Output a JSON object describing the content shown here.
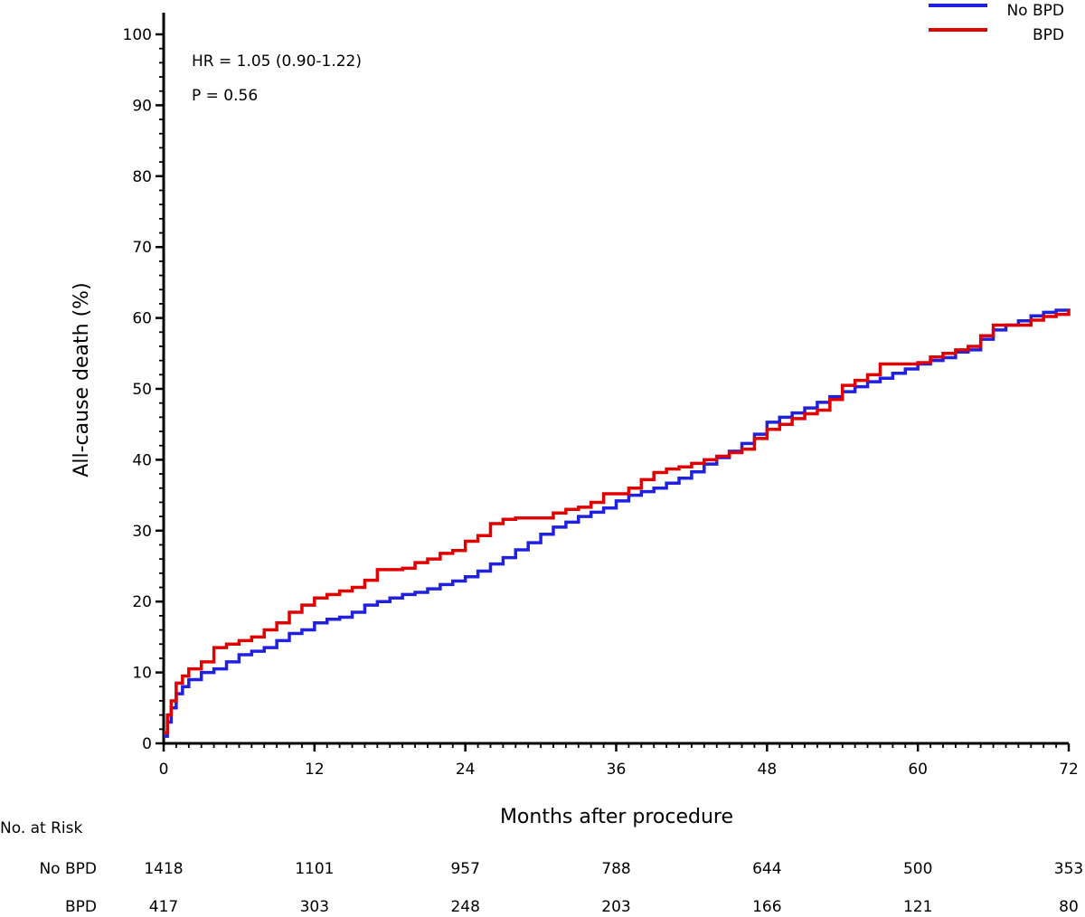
{
  "chart_data": {
    "type": "line",
    "xlabel": "Months after procedure",
    "ylabel": "All-cause death (%)",
    "xlim": [
      0,
      72
    ],
    "ylim": [
      0,
      100
    ],
    "x_ticks": [
      0,
      12,
      24,
      36,
      48,
      60,
      72
    ],
    "y_ticks": [
      0,
      10,
      20,
      30,
      40,
      50,
      60,
      70,
      80,
      90,
      100
    ],
    "grid": false,
    "legend_position": "top-right",
    "annotations": [
      "HR = 1.05 (0.90-1.22)",
      "P = 0.56"
    ],
    "series": [
      {
        "name": "No BPD",
        "color": "#2020e0",
        "x": [
          0,
          0.3,
          0.6,
          1,
          1.5,
          2,
          3,
          4,
          5,
          6,
          7,
          8,
          9,
          10,
          11,
          12,
          13,
          14,
          15,
          16,
          17,
          18,
          19,
          20,
          21,
          22,
          23,
          24,
          25,
          26,
          27,
          28,
          29,
          30,
          31,
          32,
          33,
          34,
          35,
          36,
          37,
          38,
          39,
          40,
          41,
          42,
          43,
          44,
          45,
          46,
          47,
          48,
          49,
          50,
          51,
          52,
          53,
          54,
          55,
          56,
          57,
          58,
          59,
          60,
          61,
          62,
          63,
          64,
          65,
          66,
          67,
          68,
          69,
          70,
          71,
          72
        ],
        "y": [
          1,
          3,
          5,
          7,
          8,
          9,
          10,
          10.5,
          11.5,
          12.5,
          13,
          13.5,
          14.5,
          15.5,
          16,
          17,
          17.5,
          17.8,
          18.5,
          19.5,
          20,
          20.5,
          21,
          21.3,
          21.8,
          22.4,
          22.9,
          23.5,
          24.3,
          25.3,
          26.2,
          27.3,
          28.3,
          29.5,
          30.5,
          31.2,
          32,
          32.6,
          33.2,
          34.2,
          35,
          35.5,
          36,
          36.7,
          37.4,
          38.3,
          39.4,
          40.3,
          41.2,
          42.3,
          43.6,
          45.3,
          46,
          46.6,
          47.3,
          48.1,
          48.9,
          49.6,
          50.3,
          51,
          51.5,
          52.2,
          52.8,
          53.5,
          54,
          54.4,
          55.2,
          55.5,
          57,
          58.3,
          59,
          59.6,
          60.3,
          60.8,
          61.1,
          61
        ]
      },
      {
        "name": "BPD",
        "color": "#e00000",
        "x": [
          0,
          0.3,
          0.6,
          1,
          1.5,
          2,
          3,
          4,
          5,
          6,
          7,
          8,
          9,
          10,
          11,
          12,
          13,
          14,
          15,
          16,
          17,
          18,
          19,
          20,
          21,
          22,
          23,
          24,
          25,
          26,
          27,
          28,
          29,
          30,
          31,
          32,
          33,
          34,
          35,
          36,
          37,
          38,
          39,
          40,
          41,
          42,
          43,
          44,
          45,
          46,
          47,
          48,
          49,
          50,
          51,
          52,
          53,
          54,
          55,
          56,
          57,
          58,
          59,
          60,
          61,
          62,
          63,
          64,
          65,
          66,
          67,
          68,
          69,
          70,
          71,
          72
        ],
        "y": [
          1.5,
          4,
          6,
          8.5,
          9.5,
          10.5,
          11.5,
          13.5,
          14,
          14.5,
          15,
          16,
          17,
          18.5,
          19.5,
          20.5,
          21,
          21.5,
          22,
          23,
          24.5,
          24.5,
          24.7,
          25.5,
          26,
          26.8,
          27.2,
          28.5,
          29.3,
          31,
          31.6,
          31.8,
          31.8,
          31.8,
          32.5,
          33,
          33.3,
          34,
          35.2,
          35.2,
          36,
          37.2,
          38.2,
          38.7,
          39,
          39.5,
          40,
          40.5,
          41,
          41.5,
          43,
          44.3,
          45,
          45.8,
          46.5,
          47,
          48.5,
          50.5,
          51.2,
          52,
          53.5,
          53.5,
          53.5,
          53.7,
          54.5,
          55,
          55.5,
          56,
          57.5,
          59,
          59,
          59,
          59.7,
          60.2,
          60.5,
          61.2
        ]
      }
    ]
  },
  "risk_table": {
    "title": "No. at Risk",
    "rows": [
      {
        "label": "No BPD",
        "values": [
          "1418",
          "1101",
          "957",
          "788",
          "644",
          "500",
          "353"
        ]
      },
      {
        "label": "BPD",
        "values": [
          "417",
          "303",
          "248",
          "203",
          "166",
          "121",
          "80"
        ]
      }
    ]
  }
}
